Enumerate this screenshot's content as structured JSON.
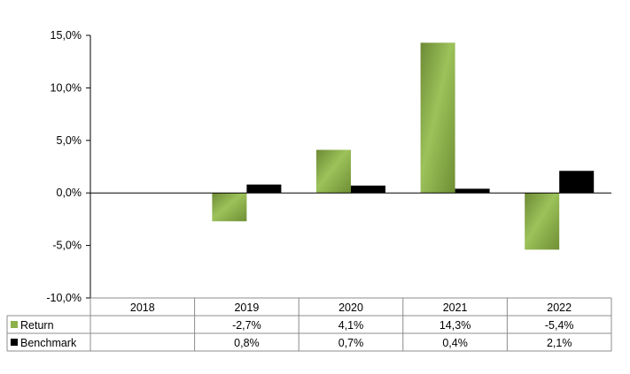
{
  "chart_data": {
    "type": "bar",
    "title": "",
    "xlabel": "",
    "ylabel": "",
    "categories": [
      "2018",
      "2019",
      "2020",
      "2021",
      "2022"
    ],
    "ylim": [
      -10.0,
      15.0
    ],
    "yticks": [
      15.0,
      10.0,
      5.0,
      0.0,
      -5.0,
      -10.0
    ],
    "ytick_labels": [
      "15,0%",
      "10,0%",
      "5,0%",
      "0,0%",
      "-5,0%",
      "-10,0%"
    ],
    "legend_placement": "bottom-left (data table rows)",
    "grid": false,
    "series": [
      {
        "name": "Return",
        "color": "#8cb04a",
        "values": [
          null,
          -2.7,
          4.1,
          14.3,
          -5.4
        ],
        "labels": [
          "",
          "-2,7%",
          "4,1%",
          "14,3%",
          "-5,4%"
        ]
      },
      {
        "name": "Benchmark",
        "color": "#000000",
        "values": [
          null,
          0.8,
          0.7,
          0.4,
          2.1
        ],
        "labels": [
          "",
          "0,8%",
          "0,7%",
          "0,4%",
          "2,1%"
        ]
      }
    ]
  }
}
